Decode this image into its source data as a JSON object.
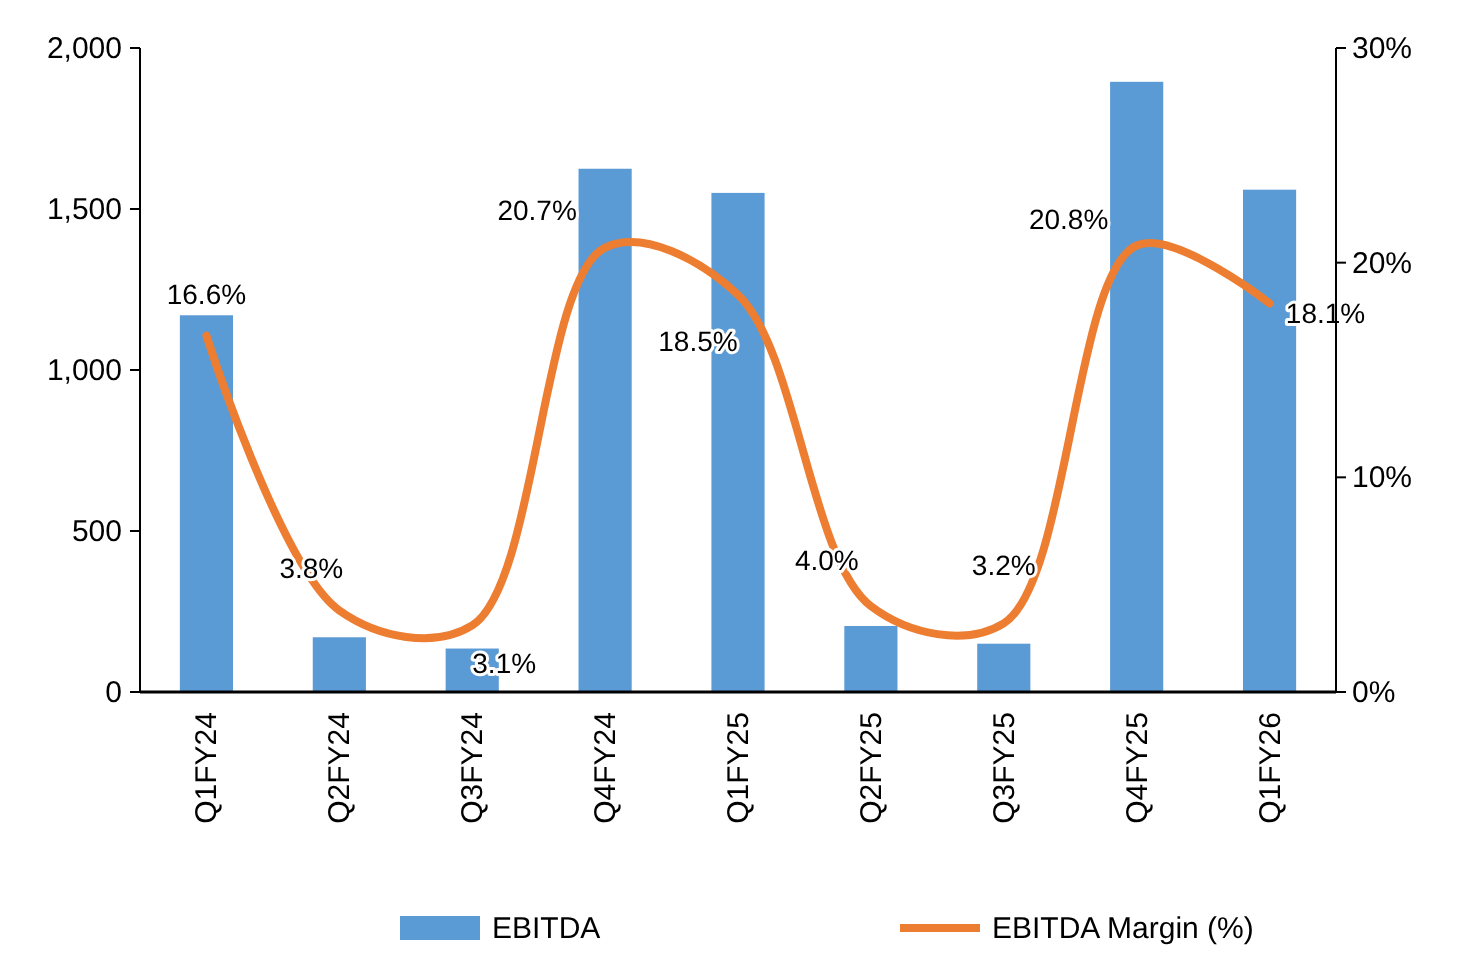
{
  "chart_data": {
    "type": "bar",
    "categories": [
      "Q1FY24",
      "Q2FY24",
      "Q3FY24",
      "Q4FY24",
      "Q1FY25",
      "Q2FY25",
      "Q3FY25",
      "Q4FY25",
      "Q1FY26"
    ],
    "series": [
      {
        "name": "EBITDA",
        "color": "#5b9bd5",
        "values": [
          1170,
          170,
          135,
          1625,
          1550,
          205,
          150,
          1895,
          1560
        ]
      },
      {
        "name": "EBITDA Margin (%)",
        "type": "line",
        "axis": "y2",
        "color": "#ed7d31",
        "values": [
          16.6,
          3.8,
          3.1,
          20.7,
          18.5,
          4.0,
          3.2,
          20.8,
          18.1
        ],
        "value_labels": [
          "16.6%",
          "3.8%",
          "3.1%",
          "20.7%",
          "18.5%",
          "4.0%",
          "3.2%",
          "20.8%",
          "18.1%"
        ]
      }
    ],
    "ylim": [
      0,
      2000
    ],
    "yticks": [
      0,
      {
        "value": 500,
        "label": "500"
      },
      {
        "value": 1000,
        "label": "1,000"
      },
      {
        "value": 1500,
        "label": "1,500"
      },
      {
        "value": 2000,
        "label": "2,000"
      }
    ],
    "y2lim": [
      0,
      30
    ],
    "y2ticks": [
      {
        "value": 0,
        "label": "0%"
      },
      {
        "value": 10,
        "label": "10%"
      },
      {
        "value": 20,
        "label": "20%"
      },
      {
        "value": 30,
        "label": "30%"
      }
    ],
    "legend": "bottom",
    "grid": false,
    "marker": "none",
    "line_style": "solid"
  }
}
